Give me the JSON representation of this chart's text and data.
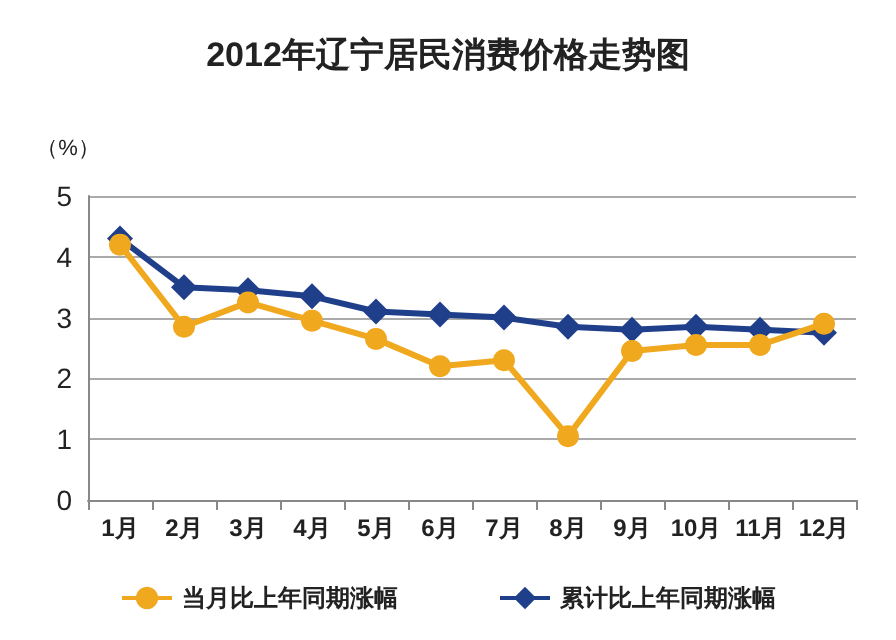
{
  "chart_data": {
    "type": "line",
    "title": "2012年辽宁居民消费价格走势图",
    "ylabel": "（%）",
    "categories": [
      "1月",
      "2月",
      "3月",
      "4月",
      "5月",
      "6月",
      "7月",
      "8月",
      "9月",
      "10月",
      "11月",
      "12月"
    ],
    "series": [
      {
        "name": "当月比上年同期涨幅",
        "color": "#f0a81e",
        "marker": "circle",
        "values": [
          4.2,
          2.85,
          3.25,
          2.95,
          2.65,
          2.2,
          2.3,
          1.05,
          2.45,
          2.55,
          2.55,
          2.9
        ]
      },
      {
        "name": "累计比上年同期涨幅",
        "color": "#1f3f8a",
        "marker": "diamond",
        "values": [
          4.3,
          3.5,
          3.45,
          3.35,
          3.1,
          3.05,
          3.0,
          2.85,
          2.8,
          2.85,
          2.8,
          2.75
        ]
      }
    ],
    "ylim": [
      0,
      5
    ],
    "yticks": [
      0,
      1,
      2,
      3,
      4,
      5
    ],
    "grid": "y",
    "legend": "bottom"
  }
}
